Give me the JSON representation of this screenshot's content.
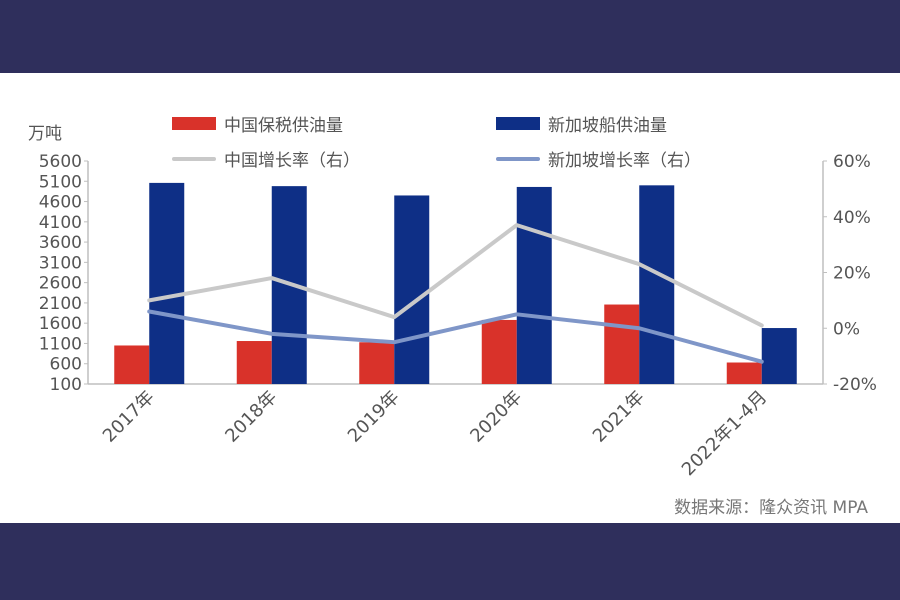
{
  "unit_label": "万吨",
  "source": "数据来源：隆众资讯 MPA",
  "colors": {
    "china_bar": "#d9322a",
    "singapore_bar": "#0e2f86",
    "china_line": "#c9c9c9",
    "singapore_line": "#7f96c8",
    "axis": "#bfbfbf",
    "tick_text": "#555555"
  },
  "chart_data": {
    "type": "bar",
    "categories": [
      "2017年",
      "2018年",
      "2019年",
      "2020年",
      "2021年",
      "2022年1-4月"
    ],
    "series": [
      {
        "name": "中国保税供油量",
        "kind": "bar",
        "axis": "left",
        "values": [
          1050,
          1160,
          1130,
          1680,
          2060,
          630
        ]
      },
      {
        "name": "新加坡船供油量",
        "kind": "bar",
        "axis": "left",
        "values": [
          5060,
          4980,
          4750,
          4960,
          5000,
          1480
        ]
      },
      {
        "name": "中国增长率（右）",
        "kind": "line",
        "axis": "right",
        "values": [
          10,
          18,
          4,
          37,
          23,
          1
        ]
      },
      {
        "name": "新加坡增长率（右）",
        "kind": "line",
        "axis": "right",
        "values": [
          6,
          -2,
          -5,
          5,
          0,
          -12
        ]
      }
    ],
    "y_left": {
      "min": 100,
      "max": 5600,
      "ticks": [
        "5600",
        "5100",
        "4600",
        "4100",
        "3600",
        "3100",
        "2600",
        "2100",
        "1600",
        "1100",
        "600",
        "100"
      ]
    },
    "y_right": {
      "min": -20,
      "max": 60,
      "ticks": [
        "60%",
        "40%",
        "20%",
        "0%",
        "-20%"
      ]
    },
    "grid": false,
    "legend_placement": "top"
  }
}
